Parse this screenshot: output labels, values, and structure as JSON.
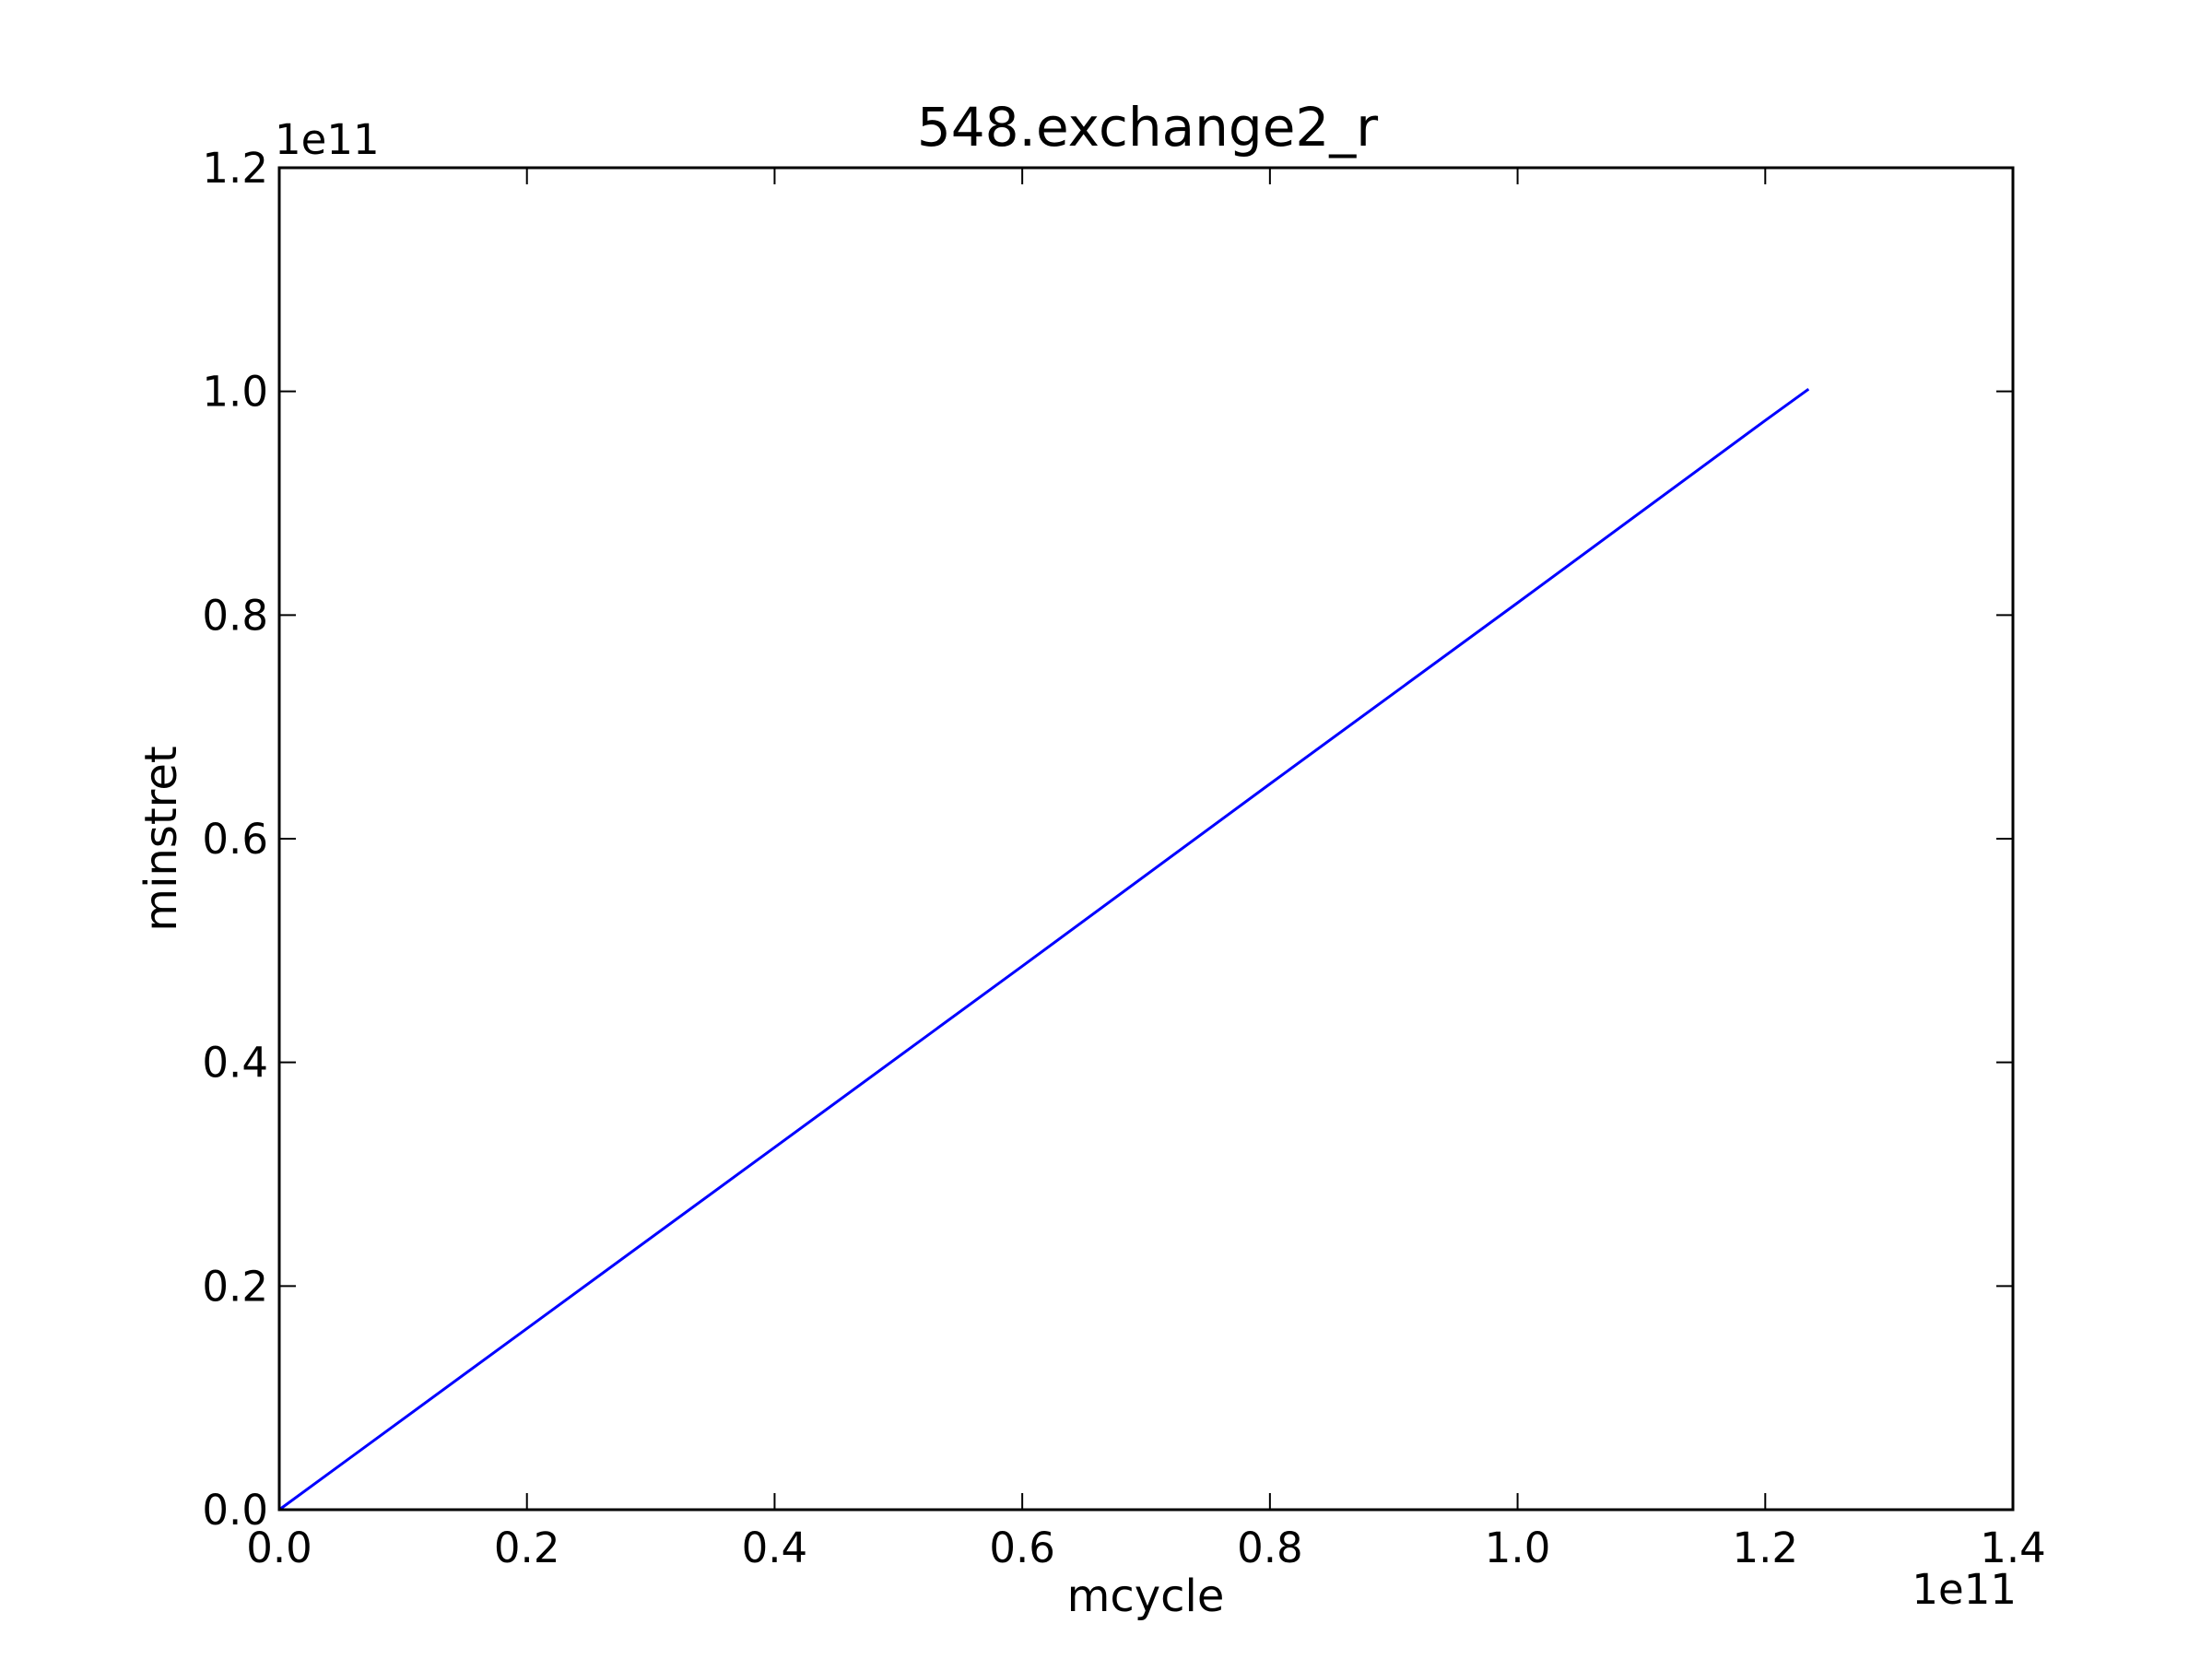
{
  "chart_data": {
    "type": "line",
    "title": "548.exchange2_r",
    "xlabel": "mcycle",
    "ylabel": "minstret",
    "x_offset_label": "1e11",
    "y_offset_label": "1e11",
    "xlim": [
      0.0,
      1.4
    ],
    "ylim": [
      0.0,
      1.2
    ],
    "x_ticks": [
      0.0,
      0.2,
      0.4,
      0.6,
      0.8,
      1.0,
      1.2,
      1.4
    ],
    "x_tick_labels": [
      "0.0",
      "0.2",
      "0.4",
      "0.6",
      "0.8",
      "1.0",
      "1.2",
      "1.4"
    ],
    "y_ticks": [
      0.0,
      0.2,
      0.4,
      0.6,
      0.8,
      1.0,
      1.2
    ],
    "y_tick_labels": [
      "0.0",
      "0.2",
      "0.4",
      "0.6",
      "0.8",
      "1.0",
      "1.2"
    ],
    "grid": false,
    "series": [
      {
        "name": "minstret",
        "color": "#0000ff",
        "x": [
          0.0,
          0.2,
          0.4,
          0.6,
          0.8,
          1.0,
          1.2,
          1.235
        ],
        "y": [
          0.0,
          0.162,
          0.324,
          0.486,
          0.649,
          0.811,
          0.974,
          1.002
        ]
      }
    ]
  }
}
